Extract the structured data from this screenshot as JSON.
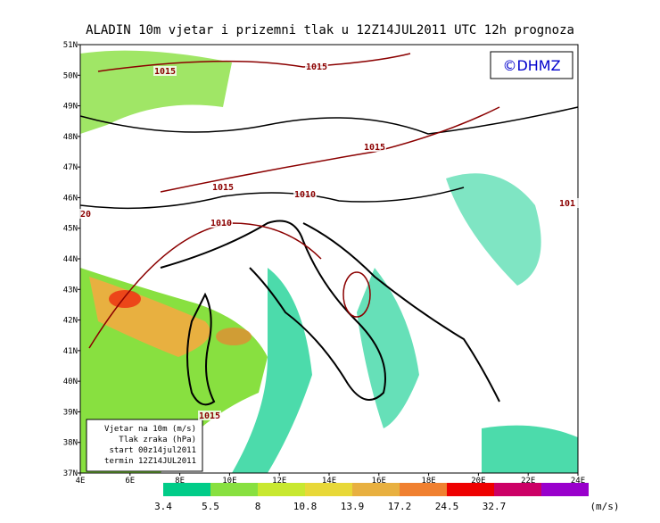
{
  "title": "ALADIN 10m vjetar i prizemni tlak u 12Z14JUL2011 UTC 12h prognoza",
  "logo": "©DHMZ",
  "lat_labels": [
    "51N",
    "50N",
    "49N",
    "48N",
    "47N",
    "46N",
    "45N",
    "44N",
    "43N",
    "42N",
    "41N",
    "40N",
    "39N",
    "38N",
    "37N"
  ],
  "lon_labels": [
    "4E",
    "6E",
    "8E",
    "10E",
    "12E",
    "14E",
    "16E",
    "18E",
    "20E",
    "22E",
    "24E"
  ],
  "isobar_labels": [
    "1015",
    "1015",
    "1015",
    "1015",
    "1010",
    "1010",
    "1015",
    "20",
    "101"
  ],
  "info_box": [
    "Vjetar na 10m (m/s)",
    "Tlak zraka (hPa)",
    "start 00z14jul2011",
    "termin 12Z14JUL2011"
  ],
  "colorbar": {
    "colors": [
      "#00cc88",
      "#88e040",
      "#c8e830",
      "#e8d838",
      "#e8b040",
      "#f08030",
      "#ee0000",
      "#cc0066",
      "#9900cc"
    ],
    "labels": [
      3.4,
      5.5,
      8,
      10.8,
      13.9,
      17.2,
      24.5,
      32.7
    ],
    "units": "(m/s)"
  }
}
